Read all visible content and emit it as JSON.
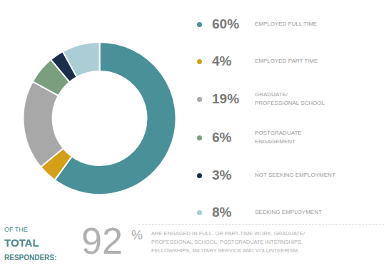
{
  "chart_data": {
    "type": "pie",
    "categories": [
      "EMPLOYED FULL TIME",
      "EMPLOYED PART TIME",
      "GRADUATE/\nPROFESSIONAL SCHOOL",
      "POSTGRADUATE\nENGAGEMENT",
      "NOT SEEKING EMPLOYMENT",
      "SEEKING EMPLOYMENT"
    ],
    "values": [
      60,
      4,
      19,
      6,
      3,
      8
    ],
    "value_labels": [
      "60%",
      "4%",
      "19%",
      "6%",
      "3%",
      "8%"
    ],
    "colors": [
      "#4a9099",
      "#d4a017",
      "#a8a8a8",
      "#7a9e7e",
      "#1c2f4a",
      "#aacdd6"
    ],
    "annotations": [
      "OF THE",
      "TOTAL",
      "RESPONDERS:",
      "92",
      "%",
      "ARE ENGAGED IN FULL- OR PART-TIME WORK, GRADUATE/\nPROFESSIONAL SCHOOL, POSTGRADUATE INTERNSHIPS,\nFELLOWSHIPS, MILITARY SERVICE AND VOLUNTEERISM."
    ]
  }
}
